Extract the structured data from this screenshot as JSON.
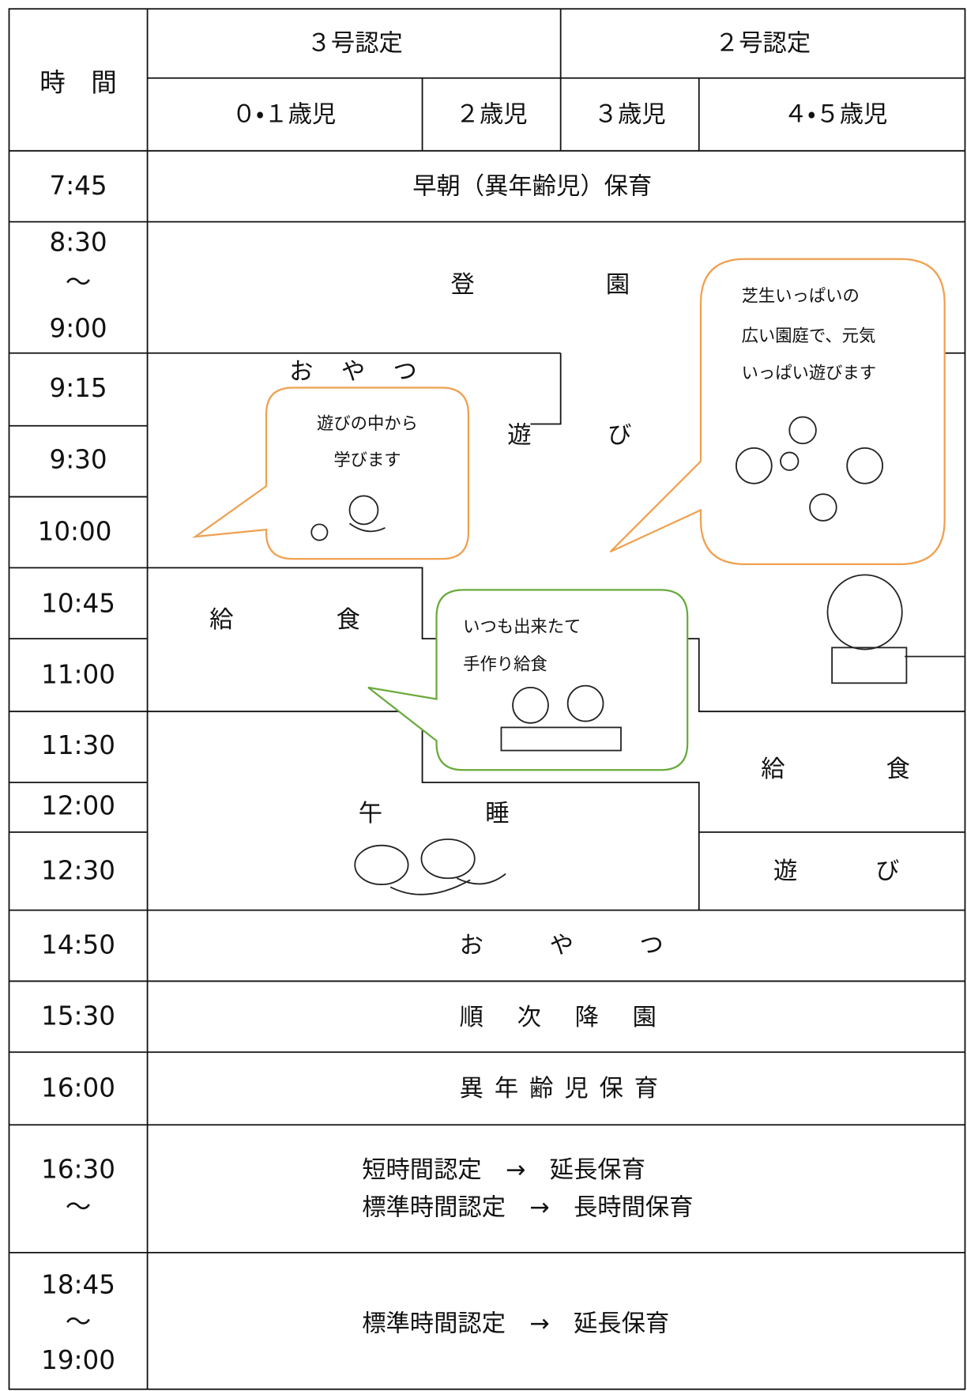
{
  "header": {
    "time": "時　間",
    "groups": [
      "３号認定",
      "２号認定"
    ],
    "ages": [
      "０・１歳児",
      "２歳児",
      "３歳児",
      "４・５歳児"
    ]
  },
  "times": [
    "7:45",
    "8:30",
    "〜",
    "9:00",
    "9:15",
    "9:30",
    "10:00",
    "10:45",
    "11:00",
    "11:30",
    "12:00",
    "12:30",
    "14:50",
    "15:30",
    "16:00",
    "16:30",
    "〜",
    "18:45",
    "〜",
    "19:00"
  ],
  "activities": [
    "早朝（異年齢児）保育",
    "登　園",
    "お　や　つ",
    "遊　び",
    "給　食",
    "給　食",
    "午　睡",
    "遊　び",
    "お　や　つ",
    "順　次　降　園",
    "異年齢児保育",
    "短時間認定　→　延長保育",
    "標準時間認定　→　長時間保育",
    "標準時間認定　→　延長保育"
  ],
  "bubbles": [
    [
      "遊びの中から",
      "学びます"
    ],
    [
      "芝生いっぱいの",
      "広い園庭で、元気",
      "いっぱい遊びます"
    ],
    [
      "いつも出来たて",
      "手作り給食"
    ]
  ]
}
